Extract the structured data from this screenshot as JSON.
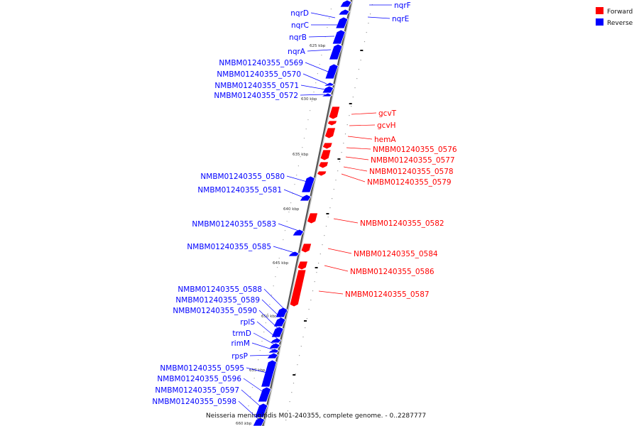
{
  "legend": {
    "forward": {
      "label": "Forward",
      "color": "#ff0000"
    },
    "reverse": {
      "label": "Reverse",
      "color": "#0000ff"
    }
  },
  "caption": "Neisseria meningitidis M01-240355, complete genome. - 0..2287777",
  "ticks": [
    {
      "label": "625 kbp"
    },
    {
      "label": "630 kbp"
    },
    {
      "label": "635 kbp"
    },
    {
      "label": "640 kbp"
    },
    {
      "label": "645 kbp"
    },
    {
      "label": "650 kbp"
    },
    {
      "label": "655 kbp"
    },
    {
      "label": "660 kbp"
    }
  ],
  "genes": [
    {
      "name": "nqrF",
      "strand": "reverse"
    },
    {
      "name": "nqrE",
      "strand": "reverse"
    },
    {
      "name": "nqrD",
      "strand": "reverse"
    },
    {
      "name": "nqrC",
      "strand": "reverse"
    },
    {
      "name": "nqrB",
      "strand": "reverse"
    },
    {
      "name": "nqrA",
      "strand": "reverse"
    },
    {
      "name": "NMBM01240355_0569",
      "strand": "reverse"
    },
    {
      "name": "NMBM01240355_0570",
      "strand": "reverse"
    },
    {
      "name": "NMBM01240355_0571",
      "strand": "reverse"
    },
    {
      "name": "NMBM01240355_0572",
      "strand": "reverse"
    },
    {
      "name": "gcvT",
      "strand": "forward"
    },
    {
      "name": "gcvH",
      "strand": "forward"
    },
    {
      "name": "hemA",
      "strand": "forward"
    },
    {
      "name": "NMBM01240355_0576",
      "strand": "forward"
    },
    {
      "name": "NMBM01240355_0577",
      "strand": "forward"
    },
    {
      "name": "NMBM01240355_0578",
      "strand": "forward"
    },
    {
      "name": "NMBM01240355_0579",
      "strand": "forward"
    },
    {
      "name": "NMBM01240355_0580",
      "strand": "reverse"
    },
    {
      "name": "NMBM01240355_0581",
      "strand": "reverse"
    },
    {
      "name": "NMBM01240355_0582",
      "strand": "forward"
    },
    {
      "name": "NMBM01240355_0583",
      "strand": "reverse"
    },
    {
      "name": "NMBM01240355_0584",
      "strand": "forward"
    },
    {
      "name": "NMBM01240355_0585",
      "strand": "reverse"
    },
    {
      "name": "NMBM01240355_0586",
      "strand": "forward"
    },
    {
      "name": "NMBM01240355_0587",
      "strand": "forward"
    },
    {
      "name": "NMBM01240355_0588",
      "strand": "reverse"
    },
    {
      "name": "NMBM01240355_0589",
      "strand": "reverse"
    },
    {
      "name": "NMBM01240355_0590",
      "strand": "reverse"
    },
    {
      "name": "rplS",
      "strand": "reverse"
    },
    {
      "name": "trmD",
      "strand": "reverse"
    },
    {
      "name": "rimM",
      "strand": "reverse"
    },
    {
      "name": "rpsP",
      "strand": "reverse"
    },
    {
      "name": "NMBM01240355_0595",
      "strand": "reverse"
    },
    {
      "name": "NMBM01240355_0596",
      "strand": "reverse"
    },
    {
      "name": "NMBM01240355_0597",
      "strand": "reverse"
    },
    {
      "name": "NMBM01240355_0598",
      "strand": "reverse"
    }
  ]
}
